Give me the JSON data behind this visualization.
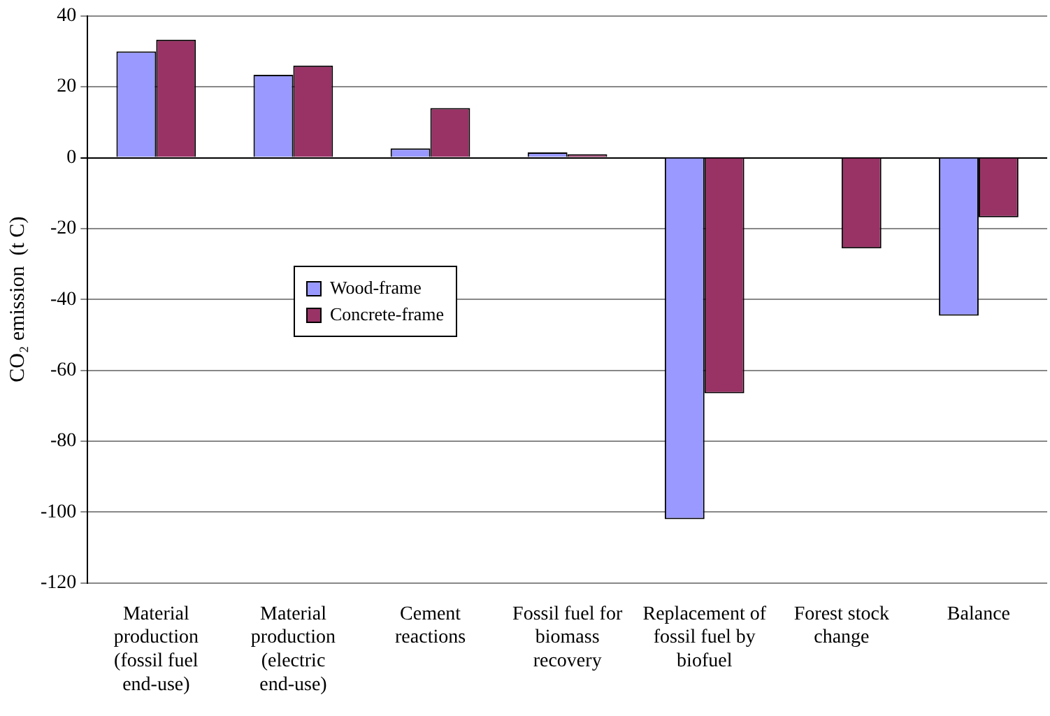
{
  "chart_data": {
    "type": "bar",
    "ylabel": "CO₂ emission  (t C)",
    "categories": [
      "Material production (fossil fuel end-use)",
      "Material production (electric end-use)",
      "Cement reactions",
      "Fossil fuel for biomass recovery",
      "Replacement of fossil fuel by biofuel",
      "Forest stock change",
      "Balance"
    ],
    "series": [
      {
        "name": "Wood-frame",
        "color": "#9999ff",
        "values": [
          30,
          23.4,
          2.6,
          1.5,
          -102,
          null,
          -44.6
        ]
      },
      {
        "name": "Concrete-frame",
        "color": "#993366",
        "values": [
          33.3,
          26,
          14,
          1,
          -66.5,
          -25.6,
          -16.8
        ]
      }
    ],
    "ylim": [
      -120,
      40
    ],
    "yticks": [
      -120,
      -100,
      -80,
      -60,
      -40,
      -20,
      0,
      20,
      40
    ],
    "grid": "y",
    "legend": "left"
  }
}
